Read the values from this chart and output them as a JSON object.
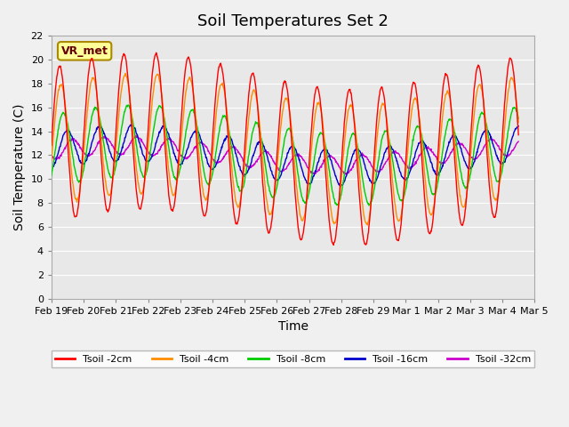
{
  "title": "Soil Temperatures Set 2",
  "xlabel": "Time",
  "ylabel": "Soil Temperature (C)",
  "annotation": "VR_met",
  "ylim": [
    0,
    22
  ],
  "yticks": [
    0,
    2,
    4,
    6,
    8,
    10,
    12,
    14,
    16,
    18,
    20,
    22
  ],
  "x_labels": [
    "Feb 19",
    "Feb 20",
    "Feb 21",
    "Feb 22",
    "Feb 23",
    "Feb 24",
    "Feb 25",
    "Feb 26",
    "Feb 27",
    "Feb 28",
    "Feb 29",
    "Mar 1",
    "Mar 2",
    "Mar 3",
    "Mar 4",
    "Mar 5"
  ],
  "series_colors": [
    "#ff0000",
    "#ff8c00",
    "#00cc00",
    "#0000cc",
    "#cc00cc"
  ],
  "series_labels": [
    "Tsoil -2cm",
    "Tsoil -4cm",
    "Tsoil -8cm",
    "Tsoil -16cm",
    "Tsoil -32cm"
  ],
  "axes_bg_color": "#e8e8e8",
  "fig_bg_color": "#f0f0f0",
  "grid_color": "#ffffff",
  "title_fontsize": 13,
  "axis_fontsize": 10,
  "tick_fontsize": 8,
  "n_days": 14.5
}
